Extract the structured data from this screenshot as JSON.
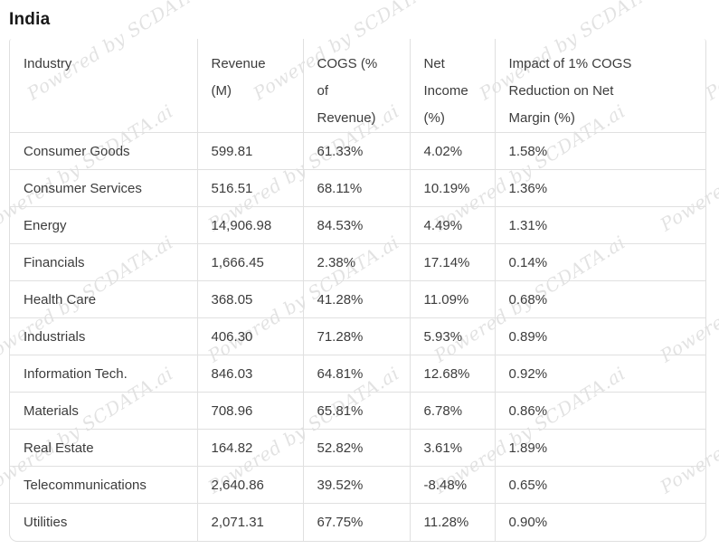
{
  "page": {
    "title": "India"
  },
  "watermark": {
    "text": "Powered by SCDATA.ai"
  },
  "chart_data": {
    "type": "table",
    "title": "India",
    "columns": [
      "Industry",
      "Revenue (M)",
      "COGS (% of Revenue)",
      "Net Income (%)",
      "Impact of 1% COGS Reduction on Net Margin (%)"
    ],
    "rows": [
      [
        "Consumer Goods",
        "599.81",
        "61.33%",
        "4.02%",
        "1.58%"
      ],
      [
        "Consumer Services",
        "516.51",
        "68.11%",
        "10.19%",
        "1.36%"
      ],
      [
        "Energy",
        "14,906.98",
        "84.53%",
        "4.49%",
        "1.31%"
      ],
      [
        "Financials",
        "1,666.45",
        "2.38%",
        "17.14%",
        "0.14%"
      ],
      [
        "Health Care",
        "368.05",
        "41.28%",
        "11.09%",
        "0.68%"
      ],
      [
        "Industrials",
        "406.30",
        "71.28%",
        "5.93%",
        "0.89%"
      ],
      [
        "Information Tech.",
        "846.03",
        "64.81%",
        "12.68%",
        "0.92%"
      ],
      [
        "Materials",
        "708.96",
        "65.81%",
        "6.78%",
        "0.86%"
      ],
      [
        "Real Estate",
        "164.82",
        "52.82%",
        "3.61%",
        "1.89%"
      ],
      [
        "Telecommunications",
        "2,640.86",
        "39.52%",
        "-8.48%",
        "0.65%"
      ],
      [
        "Utilities",
        "2,071.31",
        "67.75%",
        "11.28%",
        "0.90%"
      ]
    ],
    "styles": {
      "text_color": "#3c3c3c",
      "title_color": "#181818",
      "border_color": "#e0e0e0",
      "watermark_color": "#e2e2e2",
      "background": "#ffffff"
    },
    "layout": {
      "header_lines": [
        [
          "Industry"
        ],
        [
          "Revenue",
          "(M)"
        ],
        [
          "COGS (%",
          "of",
          "Revenue)"
        ],
        [
          "Net",
          "Income",
          "(%)"
        ],
        [
          "Impact of 1% COGS",
          "Reduction on Net",
          "Margin (%)"
        ]
      ],
      "grid": "full vertical and horizontal separators, no top border, rounded bottom corners"
    }
  }
}
